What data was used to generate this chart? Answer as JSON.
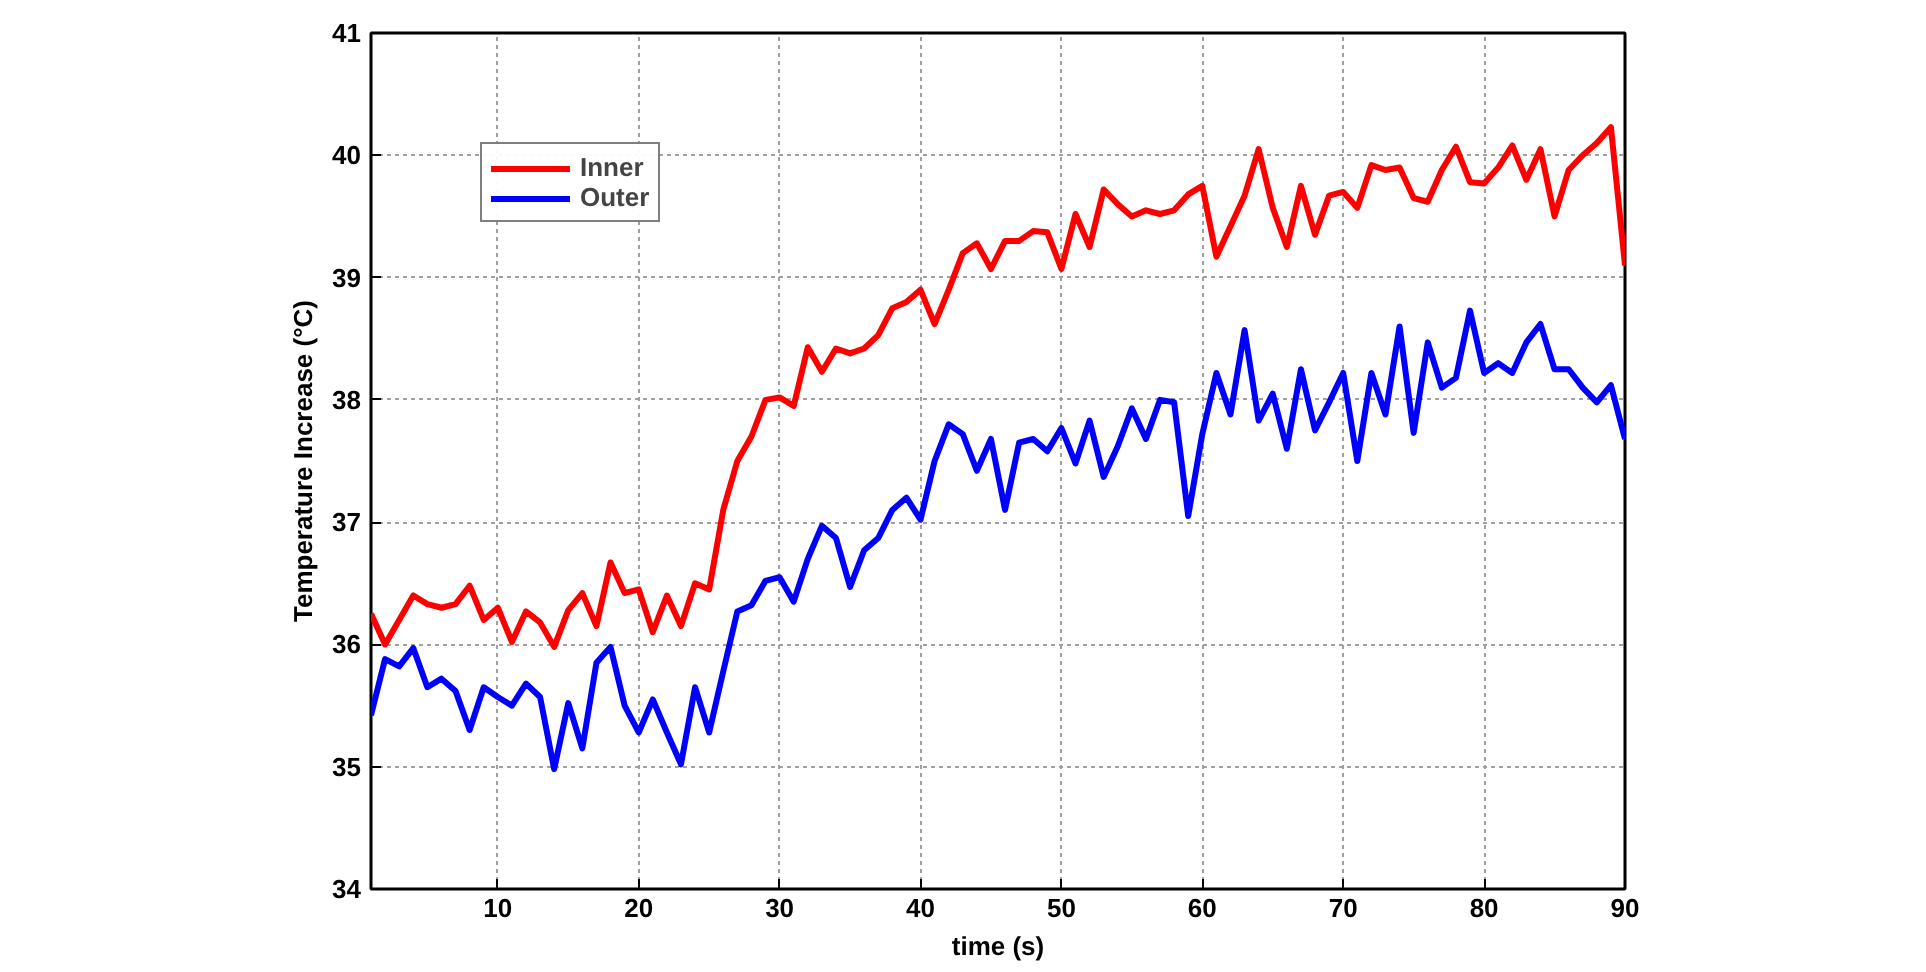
{
  "chart_data": {
    "type": "line",
    "xlabel": "time (s)",
    "ylabel": "Temperature Increase (°C)",
    "x": [
      1,
      2,
      3,
      4,
      5,
      6,
      7,
      8,
      9,
      10,
      11,
      12,
      13,
      14,
      15,
      16,
      17,
      18,
      19,
      20,
      21,
      22,
      23,
      24,
      25,
      26,
      27,
      28,
      29,
      30,
      31,
      32,
      33,
      34,
      35,
      36,
      37,
      38,
      39,
      40,
      41,
      42,
      43,
      44,
      45,
      46,
      47,
      48,
      49,
      50,
      51,
      52,
      53,
      54,
      55,
      56,
      57,
      58,
      59,
      60,
      61,
      62,
      63,
      64,
      65,
      66,
      67,
      68,
      69,
      70,
      71,
      72,
      73,
      74,
      75,
      76,
      77,
      78,
      79,
      80,
      81,
      82,
      83,
      84,
      85,
      86,
      87,
      88,
      89,
      90
    ],
    "series": [
      {
        "name": "Inner",
        "color": "#ff0000",
        "values": [
          36.25,
          36.0,
          36.2,
          36.4,
          36.33,
          36.3,
          36.33,
          36.48,
          36.2,
          36.3,
          36.02,
          36.27,
          36.18,
          35.98,
          36.28,
          36.42,
          36.15,
          36.67,
          36.42,
          36.45,
          36.1,
          36.4,
          36.15,
          36.5,
          36.45,
          37.1,
          37.5,
          37.7,
          38.0,
          38.02,
          37.95,
          38.43,
          38.23,
          38.42,
          38.38,
          38.42,
          38.53,
          38.75,
          38.8,
          38.9,
          38.62,
          38.9,
          39.2,
          39.28,
          39.07,
          39.3,
          39.3,
          39.38,
          39.37,
          39.07,
          39.52,
          39.25,
          39.72,
          39.6,
          39.5,
          39.55,
          39.52,
          39.55,
          39.68,
          39.75,
          39.17,
          39.42,
          39.67,
          40.05,
          39.57,
          39.25,
          39.75,
          39.35,
          39.67,
          39.7,
          39.57,
          39.92,
          39.88,
          39.9,
          39.65,
          39.62,
          39.88,
          40.07,
          39.78,
          39.77,
          39.9,
          40.08,
          39.8,
          40.05,
          39.5,
          39.88,
          40.0,
          40.1,
          40.23,
          39.1
        ]
      },
      {
        "name": "Outer",
        "color": "#0000ff",
        "values": [
          35.42,
          35.88,
          35.82,
          35.97,
          35.65,
          35.72,
          35.62,
          35.3,
          35.65,
          35.57,
          35.5,
          35.68,
          35.57,
          34.98,
          35.52,
          35.15,
          35.85,
          35.98,
          35.5,
          35.28,
          35.55,
          35.28,
          35.02,
          35.65,
          35.28,
          35.78,
          36.27,
          36.32,
          36.52,
          36.55,
          36.35,
          36.7,
          36.97,
          36.87,
          36.47,
          36.77,
          36.87,
          37.1,
          37.2,
          37.02,
          37.5,
          37.8,
          37.72,
          37.42,
          37.68,
          37.1,
          37.65,
          37.68,
          37.58,
          37.77,
          37.48,
          37.83,
          37.37,
          37.62,
          37.93,
          37.68,
          38.0,
          37.98,
          37.05,
          37.72,
          38.22,
          37.88,
          38.57,
          37.83,
          38.05,
          37.6,
          38.25,
          37.75,
          37.98,
          38.22,
          37.5,
          38.22,
          37.88,
          38.6,
          37.73,
          38.47,
          38.1,
          38.18,
          38.73,
          38.22,
          38.3,
          38.22,
          38.47,
          38.62,
          38.25,
          38.25,
          38.1,
          37.98,
          38.12,
          37.68
        ]
      }
    ],
    "xlim": [
      1,
      90
    ],
    "xticks": [
      10,
      20,
      30,
      40,
      50,
      60,
      70,
      80,
      90
    ],
    "ylim": [
      34,
      41
    ],
    "yticks": [
      34,
      35,
      36,
      37,
      38,
      39,
      40,
      41
    ],
    "grid": true,
    "legend": "top left",
    "line_style": "solid",
    "marker": "none"
  }
}
